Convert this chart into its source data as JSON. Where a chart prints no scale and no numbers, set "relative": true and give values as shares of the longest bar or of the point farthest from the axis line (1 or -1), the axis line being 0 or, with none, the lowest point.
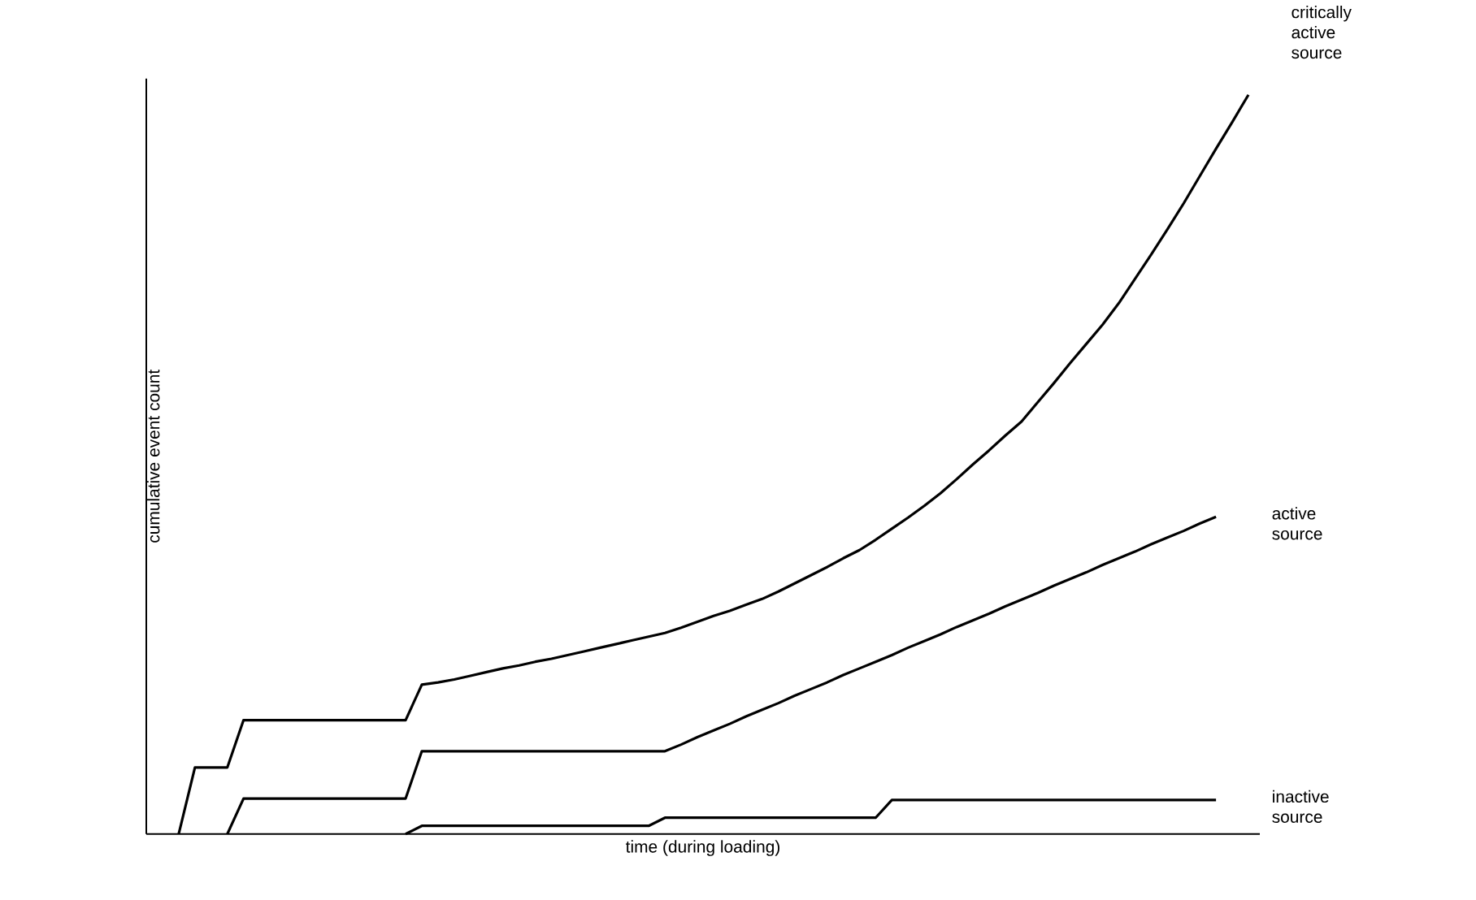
{
  "chart_data": {
    "type": "line",
    "relative": true,
    "xlabel": "time (during loading)",
    "ylabel": "cumulative event count",
    "legend": false,
    "line_style": "solid",
    "categories": [
      null,
      null,
      null,
      null,
      null,
      null,
      null,
      null,
      null,
      null,
      null,
      null,
      null,
      null,
      null,
      null,
      null,
      null,
      null,
      null,
      null,
      null,
      null,
      null,
      null,
      null,
      null,
      null,
      null,
      null,
      null,
      null,
      null,
      null,
      null,
      null,
      null,
      null,
      null,
      null,
      null,
      null,
      null,
      null,
      null,
      null,
      null,
      null,
      null,
      null,
      null,
      null,
      null,
      null,
      null,
      null,
      null,
      null,
      null,
      null,
      null,
      null,
      null,
      null,
      null,
      null,
      null,
      null,
      null
    ],
    "series": [
      {
        "name": "critically active source",
        "color": "#000000",
        "values": [
          null,
          null,
          0,
          0.09,
          0.09,
          0.09,
          0.154,
          0.154,
          0.154,
          0.154,
          0.154,
          0.154,
          0.154,
          0.154,
          0.154,
          0.154,
          0.154,
          0.202,
          0.205,
          0.209,
          0.214,
          0.219,
          0.224,
          0.228,
          0.233,
          0.237,
          0.242,
          0.247,
          0.252,
          0.257,
          0.262,
          0.267,
          0.272,
          0.279,
          0.287,
          0.295,
          0.302,
          0.31,
          0.318,
          0.328,
          0.339,
          0.35,
          0.361,
          0.373,
          0.384,
          0.398,
          0.413,
          0.428,
          0.444,
          0.461,
          0.48,
          0.5,
          0.519,
          0.539,
          0.558,
          0.584,
          0.61,
          0.637,
          0.663,
          0.689,
          0.718,
          0.751,
          0.784,
          0.818,
          0.853,
          0.89,
          0.927,
          0.963,
          1.0
        ]
      },
      {
        "name": "active source",
        "color": "#000000",
        "values": [
          null,
          null,
          null,
          null,
          null,
          0,
          0.048,
          0.048,
          0.048,
          0.048,
          0.048,
          0.048,
          0.048,
          0.048,
          0.048,
          0.048,
          0.048,
          0.112,
          0.112,
          0.112,
          0.112,
          0.112,
          0.112,
          0.112,
          0.112,
          0.112,
          0.112,
          0.112,
          0.112,
          0.112,
          0.112,
          0.112,
          0.112,
          0.121,
          0.131,
          0.14,
          0.149,
          0.159,
          0.168,
          0.177,
          0.187,
          0.196,
          0.205,
          0.215,
          0.224,
          0.233,
          0.242,
          0.252,
          0.261,
          0.27,
          0.28,
          0.289,
          0.298,
          0.308,
          0.317,
          0.326,
          0.336,
          0.345,
          0.354,
          0.364,
          0.373,
          0.382,
          0.392,
          0.401,
          0.41,
          0.42,
          0.429,
          null,
          null
        ]
      },
      {
        "name": "inactive source",
        "color": "#000000",
        "values": [
          null,
          null,
          null,
          null,
          null,
          null,
          null,
          null,
          null,
          null,
          null,
          null,
          null,
          null,
          null,
          null,
          0,
          0.011,
          0.011,
          0.011,
          0.011,
          0.011,
          0.011,
          0.011,
          0.011,
          0.011,
          0.011,
          0.011,
          0.011,
          0.011,
          0.011,
          0.011,
          0.022,
          0.022,
          0.022,
          0.022,
          0.022,
          0.022,
          0.022,
          0.022,
          0.022,
          0.022,
          0.022,
          0.022,
          0.022,
          0.022,
          0.046,
          0.046,
          0.046,
          0.046,
          0.046,
          0.046,
          0.046,
          0.046,
          0.046,
          0.046,
          0.046,
          0.046,
          0.046,
          0.046,
          0.046,
          0.046,
          0.046,
          0.046,
          0.046,
          0.046,
          0.046,
          null,
          null
        ]
      }
    ]
  }
}
